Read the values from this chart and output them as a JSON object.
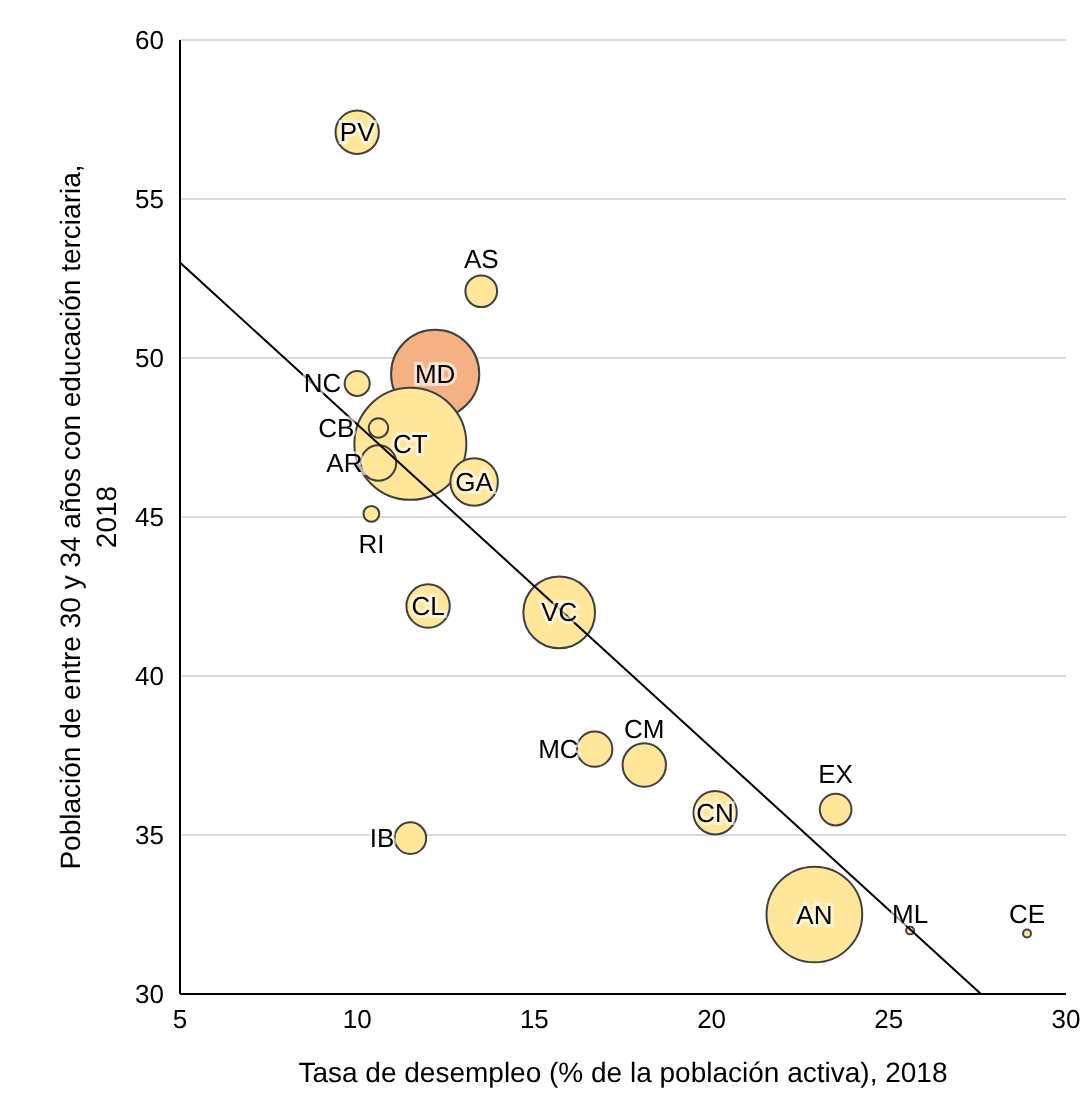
{
  "chart_data": {
    "type": "bubble",
    "xlabel": "Tasa de desempleo (% de la población activa), 2018",
    "ylabel": "Población de entre 30 y 34 años con educación terciaria, 2018",
    "xlim": [
      5,
      30
    ],
    "xticks": [
      5,
      10,
      15,
      20,
      25,
      30
    ],
    "ylim": [
      30,
      60
    ],
    "yticks": [
      30,
      35,
      40,
      45,
      50,
      55,
      60
    ],
    "grid": "y",
    "legend": false,
    "series": [
      {
        "x": [
          10.0,
          13.5,
          10.0,
          12.2,
          10.6,
          11.5,
          10.6,
          13.3,
          10.4,
          12.0,
          15.7,
          16.7,
          18.1,
          20.1,
          11.5,
          23.5,
          22.9,
          25.6,
          28.9
        ],
        "values": [
          57.1,
          52.1,
          49.2,
          49.5,
          47.8,
          47.3,
          46.7,
          46.1,
          45.1,
          42.2,
          42.0,
          37.7,
          37.2,
          35.7,
          34.9,
          35.8,
          32.5,
          32.0,
          31.9
        ],
        "sizes": [
          0.15,
          0.08,
          0.05,
          0.62,
          0.03,
          1,
          0.1,
          0.18,
          0.02,
          0.15,
          0.41,
          0.1,
          0.15,
          0.15,
          0.08,
          0.08,
          0.73,
          0.005,
          0.005
        ],
        "colors": [
          "#ffe699",
          "#ffe699",
          "#ffe699",
          "#f4b183",
          "#ffe699",
          "#ffe699",
          "#ffe699",
          "#ffe699",
          "#ffe699",
          "#ffe699",
          "#ffe699",
          "#ffe699",
          "#ffe699",
          "#ffe699",
          "#ffe699",
          "#ffe699",
          "#ffe699",
          "#ffe699",
          "#ffe699"
        ]
      },
      {
        "type": "line",
        "color": "#000000",
        "x": [
          5,
          27.6
        ],
        "values": [
          53.0,
          30.0
        ]
      }
    ],
    "annotations": [
      {
        "text": "PV",
        "x": 10.0,
        "y": 57.1
      },
      {
        "text": "AS",
        "x": 13.5,
        "y": 52.1
      },
      {
        "text": "NC",
        "x": 10.0,
        "y": 49.2
      },
      {
        "text": "MD",
        "x": 12.2,
        "y": 49.5
      },
      {
        "text": "CB",
        "x": 10.6,
        "y": 47.8
      },
      {
        "text": "CT",
        "x": 11.5,
        "y": 47.3
      },
      {
        "text": "AR",
        "x": 10.6,
        "y": 46.7
      },
      {
        "text": "GA",
        "x": 13.3,
        "y": 46.1
      },
      {
        "text": "RI",
        "x": 10.4,
        "y": 45.1
      },
      {
        "text": "CL",
        "x": 12.0,
        "y": 42.2
      },
      {
        "text": "VC",
        "x": 15.7,
        "y": 42.0
      },
      {
        "text": "MC",
        "x": 16.7,
        "y": 37.7
      },
      {
        "text": "CM",
        "x": 18.1,
        "y": 37.2
      },
      {
        "text": "CN",
        "x": 20.1,
        "y": 35.7
      },
      {
        "text": "IB",
        "x": 11.5,
        "y": 34.9
      },
      {
        "text": "EX",
        "x": 23.5,
        "y": 35.8
      },
      {
        "text": "AN",
        "x": 22.9,
        "y": 32.5
      },
      {
        "text": "ML",
        "x": 25.6,
        "y": 32.0
      },
      {
        "text": "CE",
        "x": 28.9,
        "y": 31.9
      }
    ]
  }
}
